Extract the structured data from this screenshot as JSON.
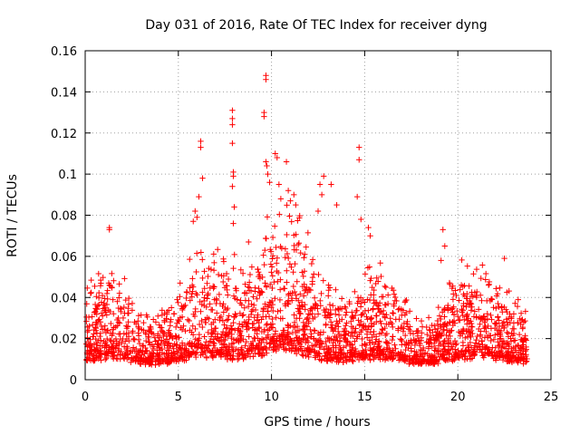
{
  "chart_data": {
    "type": "scatter",
    "title": "Day 031 of 2016, Rate Of TEC Index for receiver dyng",
    "xlabel": "GPS time / hours",
    "ylabel": "ROTI / TECUs",
    "xlim": [
      0,
      25
    ],
    "ylim": [
      0,
      0.16
    ],
    "xticks": [
      "0",
      "5",
      "10",
      "15",
      "20",
      "25"
    ],
    "yticks": [
      "0",
      "0.02",
      "0.04",
      "0.06",
      "0.08",
      "0.1",
      "0.12",
      "0.14",
      "0.16"
    ],
    "grid": true,
    "marker": "+",
    "color": "#ff0000",
    "series": [
      {
        "name": "ROTI",
        "notable_points": [
          [
            1.3,
            0.073
          ],
          [
            1.3,
            0.074
          ],
          [
            1.3,
            0.046
          ],
          [
            6.2,
            0.116
          ],
          [
            6.2,
            0.113
          ],
          [
            6.3,
            0.098
          ],
          [
            6.1,
            0.089
          ],
          [
            5.9,
            0.082
          ],
          [
            6.0,
            0.079
          ],
          [
            5.8,
            0.077
          ],
          [
            7.9,
            0.131
          ],
          [
            7.9,
            0.127
          ],
          [
            7.9,
            0.124
          ],
          [
            7.9,
            0.115
          ],
          [
            7.95,
            0.101
          ],
          [
            7.95,
            0.099
          ],
          [
            7.9,
            0.094
          ],
          [
            8.0,
            0.084
          ],
          [
            7.95,
            0.076
          ],
          [
            9.7,
            0.148
          ],
          [
            9.7,
            0.146
          ],
          [
            9.6,
            0.13
          ],
          [
            9.6,
            0.128
          ],
          [
            9.7,
            0.106
          ],
          [
            9.75,
            0.104
          ],
          [
            9.8,
            0.1
          ],
          [
            9.9,
            0.096
          ],
          [
            10.2,
            0.11
          ],
          [
            10.3,
            0.108
          ],
          [
            10.8,
            0.106
          ],
          [
            10.4,
            0.095
          ],
          [
            10.9,
            0.092
          ],
          [
            10.5,
            0.088
          ],
          [
            11.2,
            0.09
          ],
          [
            11.3,
            0.085
          ],
          [
            12.6,
            0.095
          ],
          [
            12.8,
            0.099
          ],
          [
            12.7,
            0.09
          ],
          [
            13.2,
            0.095
          ],
          [
            12.5,
            0.082
          ],
          [
            13.5,
            0.085
          ],
          [
            14.7,
            0.113
          ],
          [
            14.7,
            0.107
          ],
          [
            14.6,
            0.089
          ],
          [
            14.8,
            0.078
          ],
          [
            15.2,
            0.074
          ],
          [
            15.3,
            0.07
          ],
          [
            19.2,
            0.073
          ],
          [
            19.3,
            0.065
          ],
          [
            19.1,
            0.058
          ],
          [
            22.5,
            0.059
          ]
        ]
      }
    ]
  }
}
